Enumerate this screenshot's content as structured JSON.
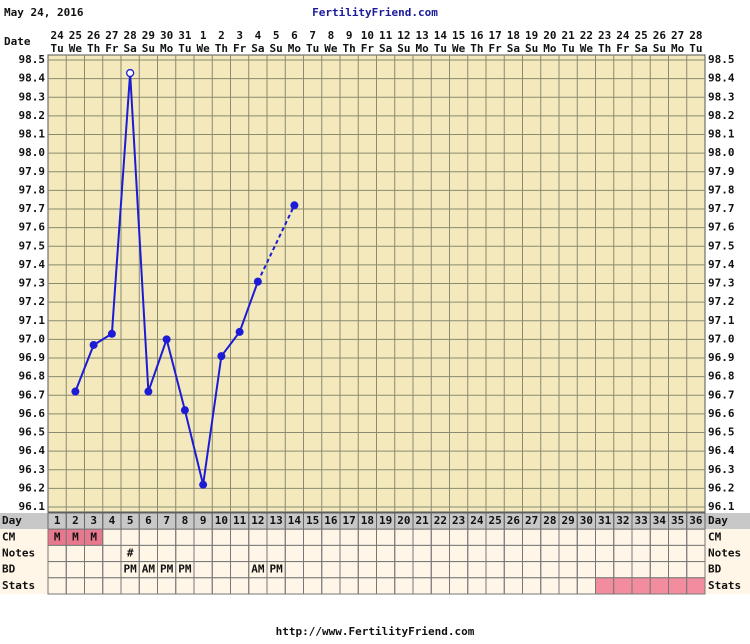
{
  "chart_data": {
    "type": "line",
    "date": "May 24, 2016",
    "site": "FertilityFriend.com",
    "footer": "http://www.FertilityFriend.com",
    "date_label": "Date",
    "day_label": "Day",
    "x": [
      1,
      2,
      3,
      4,
      5,
      6,
      7,
      8,
      9,
      10,
      11,
      12,
      13,
      14,
      15,
      16,
      17,
      18,
      19,
      20,
      21,
      22,
      23,
      24,
      25,
      26,
      27,
      28,
      29,
      30,
      31,
      32,
      33,
      34,
      35,
      36
    ],
    "dates": [
      "24",
      "25",
      "26",
      "27",
      "28",
      "29",
      "30",
      "31",
      "1",
      "2",
      "3",
      "4",
      "5",
      "6",
      "7",
      "8",
      "9",
      "10",
      "11",
      "12",
      "13",
      "14",
      "15",
      "16",
      "17",
      "18",
      "19",
      "20",
      "21",
      "22",
      "23",
      "24",
      "25",
      "26",
      "27",
      "28"
    ],
    "weekdays": [
      "Tu",
      "We",
      "Th",
      "Fr",
      "Sa",
      "Su",
      "Mo",
      "Tu",
      "We",
      "Th",
      "Fr",
      "Sa",
      "Su",
      "Mo",
      "Tu",
      "We",
      "Th",
      "Fr",
      "Sa",
      "Su",
      "Mo",
      "Tu",
      "We",
      "Th",
      "Fr",
      "Sa",
      "Su",
      "Mo",
      "Tu",
      "We",
      "Th",
      "Fr",
      "Sa",
      "Su",
      "Mo",
      "Tu"
    ],
    "values": [
      null,
      96.72,
      96.97,
      97.03,
      98.43,
      96.72,
      97.0,
      96.62,
      96.22,
      96.91,
      97.04,
      97.31,
      null,
      97.72,
      null,
      null,
      null,
      null,
      null,
      null,
      null,
      null,
      null,
      null,
      null,
      null,
      null,
      null,
      null,
      null,
      null,
      null,
      null,
      null,
      null,
      null
    ],
    "color": "#1c1cd6",
    "open_markers": [
      4
    ],
    "bridge_gaps": true,
    "ylim": [
      96.1,
      98.5
    ],
    "yticks": [
      96.1,
      96.2,
      96.3,
      96.4,
      96.5,
      96.6,
      96.7,
      96.8,
      96.9,
      {
        "value": 97.0,
        "label": "97.0"
      },
      97.1,
      97.2,
      97.3,
      97.4,
      97.5,
      97.6,
      97.7,
      97.8,
      97.9,
      {
        "value": 98.0,
        "label": "98.0"
      },
      98.1,
      98.2,
      98.3,
      98.4,
      98.5
    ],
    "grid": true,
    "rows": [
      {
        "label": "CM",
        "cells": [
          "M",
          "M",
          "M",
          null,
          null,
          null,
          null,
          null,
          null,
          null,
          null,
          null,
          null,
          null,
          null,
          null,
          null,
          null,
          null,
          null,
          null,
          null,
          null,
          null,
          null,
          null,
          null,
          null,
          null,
          null,
          null,
          null,
          null,
          null,
          null,
          null
        ],
        "highlight": [
          0,
          1,
          2
        ],
        "highlight_color": "#e8788e"
      },
      {
        "label": "Notes",
        "cells": [
          null,
          null,
          null,
          null,
          "#",
          null,
          null,
          null,
          null,
          null,
          null,
          null,
          null,
          null,
          null,
          null,
          null,
          null,
          null,
          null,
          null,
          null,
          null,
          null,
          null,
          null,
          null,
          null,
          null,
          null,
          null,
          null,
          null,
          null,
          null,
          null
        ]
      },
      {
        "label": "BD",
        "cells": [
          null,
          null,
          null,
          null,
          "PM",
          "AM",
          "PM",
          "PM",
          null,
          null,
          null,
          "AM",
          "PM",
          null,
          null,
          null,
          null,
          null,
          null,
          null,
          null,
          null,
          null,
          null,
          null,
          null,
          null,
          null,
          null,
          null,
          null,
          null,
          null,
          null,
          null,
          null
        ]
      },
      {
        "label": "Stats",
        "cells": [
          null,
          null,
          null,
          null,
          null,
          null,
          null,
          null,
          null,
          null,
          null,
          null,
          null,
          null,
          null,
          null,
          null,
          null,
          null,
          null,
          null,
          null,
          null,
          null,
          null,
          null,
          null,
          null,
          null,
          null,
          null,
          null,
          null,
          null,
          null,
          null
        ],
        "highlight": [
          30,
          31,
          32,
          33,
          34,
          35
        ],
        "highlight_color": "#f48ca0"
      }
    ]
  }
}
